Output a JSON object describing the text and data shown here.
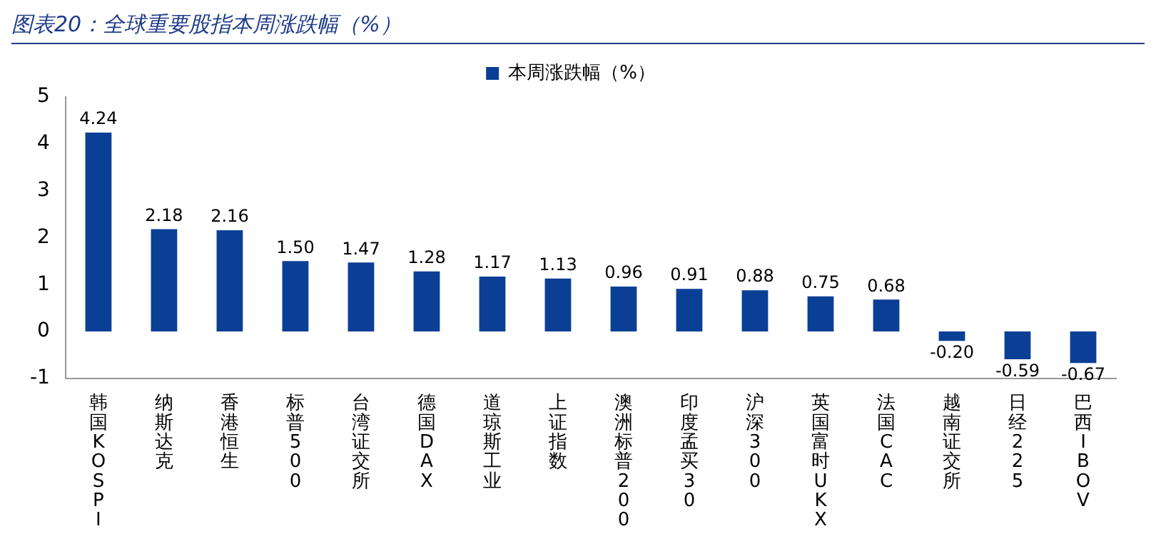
{
  "chart_data": {
    "type": "bar",
    "title": "图表20：全球重要股指本周涨跌幅（%）",
    "categories": [
      "韩国KOSPI",
      "纳斯达克",
      "香港恒生",
      "标普500",
      "台湾证交所",
      "德国DAX",
      "道琼斯工业",
      "上证指数",
      "澳洲标普200",
      "印度孟买30",
      "沪深300",
      "英国富时UKX",
      "法国CAC",
      "越南证交所",
      "日经225",
      "巴西IBOV"
    ],
    "series": [
      {
        "name": "本周涨跌幅（%）",
        "color": "#0b3f96",
        "values": [
          4.24,
          2.18,
          2.16,
          1.5,
          1.47,
          1.28,
          1.17,
          1.13,
          0.96,
          0.91,
          0.88,
          0.75,
          0.68,
          -0.2,
          -0.59,
          -0.67
        ],
        "value_labels": [
          "4.24",
          "2.18",
          "2.16",
          "1.50",
          "1.47",
          "1.28",
          "1.17",
          "1.13",
          "0.96",
          "0.91",
          "0.88",
          "0.75",
          "0.68",
          "-0.20",
          "-0.59",
          "-0.67"
        ]
      }
    ],
    "ylim": [
      -1,
      5
    ],
    "yticks": [
      -1,
      0,
      1,
      2,
      3,
      4,
      5
    ],
    "grid": false,
    "legend": "top"
  }
}
